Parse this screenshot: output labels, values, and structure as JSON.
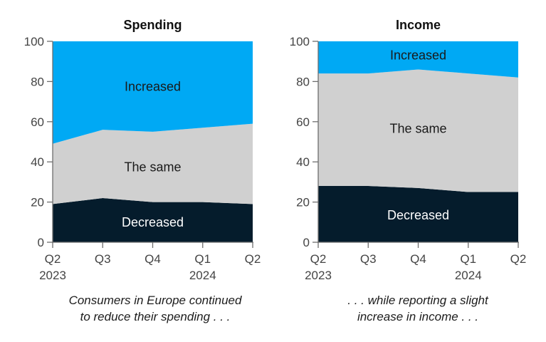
{
  "chart_data": [
    {
      "type": "area",
      "title": "Spending",
      "x_ticks": [
        [
          "Q2",
          "2023"
        ],
        [
          "Q3"
        ],
        [
          "Q4"
        ],
        [
          "Q1",
          "2024"
        ],
        [
          "Q2"
        ]
      ],
      "ylim": [
        0,
        100
      ],
      "y_ticks": [
        0,
        20,
        40,
        60,
        80,
        100
      ],
      "stacked": true,
      "series": [
        {
          "name": "Decreased",
          "values": [
            19,
            22,
            20,
            20,
            19
          ]
        },
        {
          "name": "The same",
          "values": [
            30,
            34,
            35,
            37,
            40
          ]
        },
        {
          "name": "Increased",
          "values": [
            51,
            44,
            45,
            43,
            41
          ]
        }
      ],
      "caption": [
        "Consumers in Europe continued",
        "to reduce their spending . . ."
      ]
    },
    {
      "type": "area",
      "title": "Income",
      "x_ticks": [
        [
          "Q2",
          "2023"
        ],
        [
          "Q3"
        ],
        [
          "Q4"
        ],
        [
          "Q1",
          "2024"
        ],
        [
          "Q2"
        ]
      ],
      "ylim": [
        0,
        100
      ],
      "y_ticks": [
        0,
        20,
        40,
        60,
        80,
        100
      ],
      "stacked": true,
      "series": [
        {
          "name": "Decreased",
          "values": [
            28,
            28,
            27,
            25,
            25
          ]
        },
        {
          "name": "The same",
          "values": [
            56,
            56,
            59,
            59,
            57
          ]
        },
        {
          "name": "Increased",
          "values": [
            16,
            16,
            14,
            16,
            18
          ]
        }
      ],
      "caption": [
        ". . . while reporting a slight",
        "increase in income . . ."
      ]
    }
  ],
  "colors": {
    "Decreased": "#051c2c",
    "The same": "#d0d0d0",
    "Increased": "#00a9f4",
    "axis": "#6e6e6e",
    "text": "#222222"
  }
}
